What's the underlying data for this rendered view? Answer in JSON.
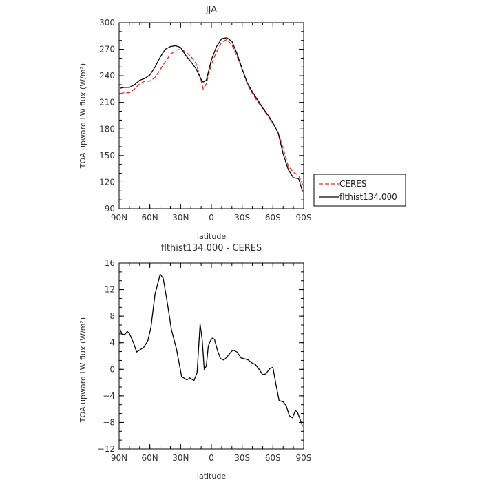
{
  "chart_data": [
    {
      "type": "line",
      "title": "JJA",
      "xlabel": "latitude",
      "ylabel": "TOA upward LW flux (W/m²)",
      "xlim": [
        90,
        -90
      ],
      "ylim": [
        90,
        300
      ],
      "x_ticks": [
        90,
        60,
        30,
        0,
        -30,
        -60,
        -90
      ],
      "x_tick_labels": [
        "90N",
        "60N",
        "30N",
        "0",
        "30S",
        "60S",
        "90S"
      ],
      "y_ticks": [
        90,
        120,
        150,
        180,
        210,
        240,
        270,
        300
      ],
      "y_tick_labels": [
        "90",
        "120",
        "150",
        "180",
        "210",
        "240",
        "270",
        "300"
      ],
      "grid": false,
      "legend_position": "outside right, lower",
      "series": [
        {
          "name": "CERES",
          "style": "dashed",
          "color": "#e8261f",
          "x": [
            89,
            85,
            80,
            75,
            70,
            65,
            60,
            55,
            50,
            45,
            40,
            35,
            30,
            25,
            20,
            15,
            10,
            8,
            5,
            0,
            -5,
            -10,
            -15,
            -20,
            -25,
            -30,
            -35,
            -40,
            -45,
            -50,
            -55,
            -60,
            -65,
            -70,
            -75,
            -80,
            -85,
            -89
          ],
          "values": [
            220,
            221,
            221,
            225,
            231,
            234,
            234,
            238,
            247,
            256,
            264,
            269,
            270,
            267,
            262,
            254,
            235,
            225,
            231,
            253,
            267,
            278,
            281,
            275,
            262,
            247,
            231,
            220,
            211,
            203,
            195,
            186,
            176,
            158,
            138,
            131,
            128,
            117
          ]
        },
        {
          "name": "flthist134.000",
          "style": "solid",
          "color": "#000000",
          "x": [
            89,
            85,
            80,
            75,
            70,
            65,
            60,
            55,
            50,
            45,
            40,
            35,
            30,
            25,
            20,
            15,
            10,
            8,
            5,
            0,
            -5,
            -10,
            -15,
            -20,
            -25,
            -30,
            -35,
            -40,
            -45,
            -50,
            -55,
            -60,
            -65,
            -70,
            -75,
            -80,
            -85,
            -89
          ],
          "values": [
            226,
            227,
            227,
            230,
            235,
            237,
            241,
            250,
            261,
            270,
            273,
            274,
            272,
            263,
            256,
            248,
            236,
            233,
            235,
            258,
            273,
            282,
            283,
            279,
            265,
            248,
            232,
            222,
            213,
            204,
            196,
            187,
            176,
            152,
            134,
            125,
            124,
            109
          ]
        }
      ]
    },
    {
      "type": "line",
      "title": "flthist134.000 - CERES",
      "xlabel": "latitude",
      "ylabel": "TOA upward LW flux (W/m²)",
      "xlim": [
        90,
        -90
      ],
      "ylim": [
        -12,
        16
      ],
      "x_ticks": [
        90,
        60,
        30,
        0,
        -30,
        -60,
        -90
      ],
      "x_tick_labels": [
        "90N",
        "60N",
        "30N",
        "0",
        "30S",
        "60S",
        "90S"
      ],
      "y_ticks": [
        -12,
        -8,
        -4,
        0,
        4,
        8,
        12,
        16
      ],
      "y_tick_labels": [
        "−12",
        "−8",
        "−4",
        "0",
        "4",
        "8",
        "12",
        "16"
      ],
      "grid": false,
      "series": [
        {
          "color": "#000000",
          "x": [
            89,
            87,
            84,
            82,
            80,
            76,
            73,
            70,
            66,
            62,
            59,
            55,
            50,
            47,
            43,
            39,
            34,
            29,
            24,
            21,
            17,
            14,
            11,
            9,
            7,
            5,
            3,
            1,
            -1,
            -3,
            -6,
            -9,
            -12,
            -15,
            -18,
            -21,
            -25,
            -29,
            -32,
            -36,
            -39,
            -43,
            -46,
            -50,
            -53,
            -57,
            -60,
            -63,
            -66,
            -70,
            -73,
            -76,
            -79,
            -82,
            -84,
            -86,
            -88,
            -89
          ],
          "values": [
            6,
            5.2,
            5.3,
            5.7,
            5.4,
            4.0,
            2.6,
            2.9,
            3.3,
            4.3,
            6.3,
            11.3,
            14.3,
            13.7,
            10.0,
            6.0,
            3.0,
            -1.1,
            -1.6,
            -1.3,
            -1.7,
            -0.5,
            6.8,
            4.5,
            0.0,
            0.5,
            3.5,
            4.3,
            4.7,
            4.5,
            2.8,
            1.6,
            1.4,
            1.8,
            2.4,
            2.9,
            2.6,
            1.7,
            1.6,
            1.4,
            1.0,
            0.7,
            0.1,
            -0.8,
            -0.7,
            0.1,
            0.3,
            -2.3,
            -4.7,
            -4.9,
            -5.5,
            -7.0,
            -7.3,
            -6.2,
            -6.5,
            -7.3,
            -8.2,
            -8.6
          ]
        }
      ]
    }
  ]
}
